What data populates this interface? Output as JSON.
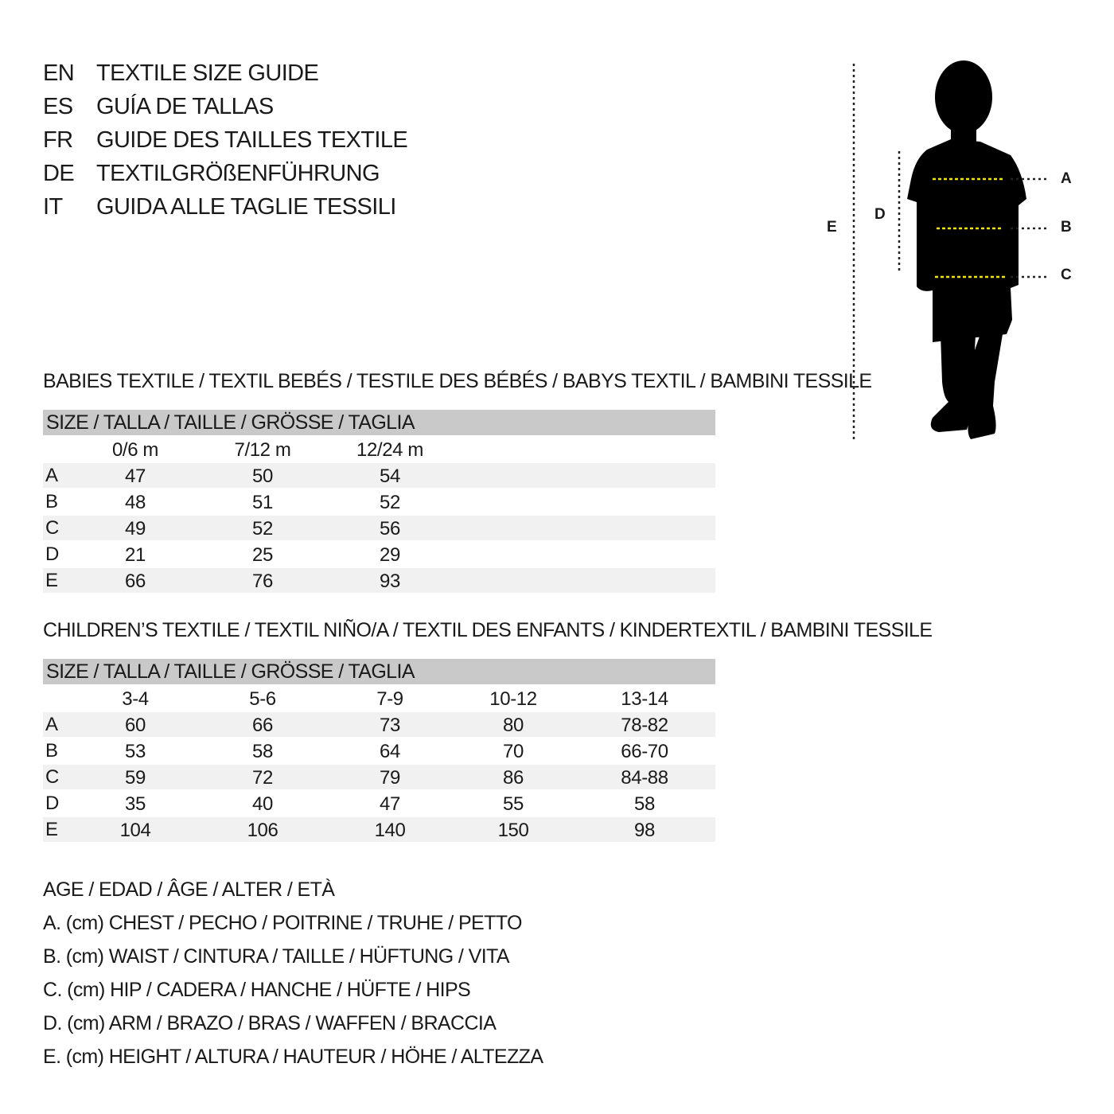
{
  "titles": [
    {
      "code": "EN",
      "text": "TEXTILE SIZE GUIDE"
    },
    {
      "code": "ES",
      "text": "GUÍA DE TALLAS"
    },
    {
      "code": "FR",
      "text": "GUIDE DES TAILLES TEXTILE"
    },
    {
      "code": "DE",
      "text": "TEXTILGRÖßENFÜHRUNG"
    },
    {
      "code": "IT",
      "text": "GUIDA ALLE TAGLIE TESSILI"
    }
  ],
  "diagram": {
    "labels": {
      "A": "A",
      "B": "B",
      "C": "C",
      "D": "D",
      "E": "E"
    },
    "colors": {
      "silhouette": "#000000",
      "measure_line": "#f2e600"
    }
  },
  "babies": {
    "heading": "BABIES TEXTILE / TEXTIL BEBÉS / TESTILE DES BÉBÉS / BABYS TEXTIL / BAMBINI TESSILE",
    "size_header": "SIZE / TALLA / TAILLE / GRÖSSE / TAGLIA",
    "columns": [
      "0/6 m",
      "7/12 m",
      "12/24 m"
    ],
    "rows": [
      {
        "label": "A",
        "values": [
          "47",
          "50",
          "54"
        ]
      },
      {
        "label": "B",
        "values": [
          "48",
          "51",
          "52"
        ]
      },
      {
        "label": "C",
        "values": [
          "49",
          "52",
          "56"
        ]
      },
      {
        "label": "D",
        "values": [
          "21",
          "25",
          "29"
        ]
      },
      {
        "label": "E",
        "values": [
          "66",
          "76",
          "93"
        ]
      }
    ]
  },
  "children": {
    "heading": "CHILDREN’S TEXTILE / TEXTIL NIÑO/A / TEXTIL DES ENFANTS / KINDERTEXTIL / BAMBINI TESSILE",
    "size_header": "SIZE / TALLA / TAILLE / GRÖSSE / TAGLIA",
    "columns": [
      "3-4",
      "5-6",
      "7-9",
      "10-12",
      "13-14"
    ],
    "rows": [
      {
        "label": "A",
        "values": [
          "60",
          "66",
          "73",
          "80",
          "78-82"
        ]
      },
      {
        "label": "B",
        "values": [
          "53",
          "58",
          "64",
          "70",
          "66-70"
        ]
      },
      {
        "label": "C",
        "values": [
          "59",
          "72",
          "79",
          "86",
          "84-88"
        ]
      },
      {
        "label": "D",
        "values": [
          "35",
          "40",
          "47",
          "55",
          "58"
        ]
      },
      {
        "label": "E",
        "values": [
          "104",
          "106",
          "140",
          "150",
          "98"
        ]
      }
    ]
  },
  "legend": [
    "AGE / EDAD / ÂGE / ALTER / ETÀ",
    "A. (cm) CHEST / PECHO / POITRINE / TRUHE / PETTO",
    "B. (cm) WAIST / CINTURA / TAILLE / HÜFTUNG / VITA",
    "C. (cm) HIP / CADERA / HANCHE / HÜFTE / HIPS",
    "D. (cm) ARM / BRAZO / BRAS / WAFFEN / BRACCIA",
    "E. (cm) HEIGHT / ALTURA / HAUTEUR / HÖHE / ALTEZZA"
  ]
}
